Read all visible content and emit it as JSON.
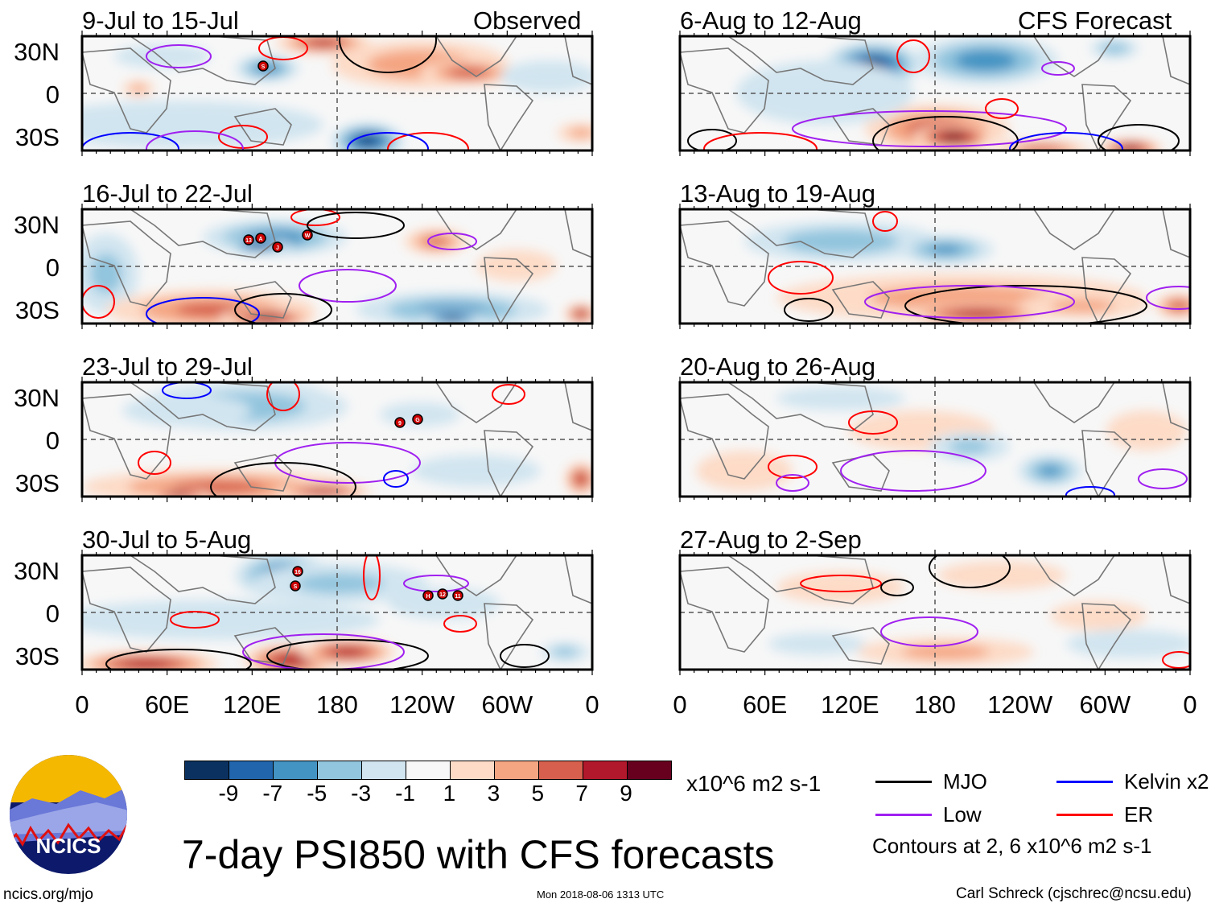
{
  "figure": {
    "title": "7-day PSI850 with CFS forecasts",
    "observed_label": "Observed",
    "forecast_label": "CFS Forecast",
    "units": "x10^6 m2 s-1",
    "timestamp": "Mon 2018-08-06 1313 UTC",
    "website": "ncics.org/mjo",
    "author": "Carl Schreck (cjschrec@ncsu.edu)",
    "logo_text": "NCICS",
    "contour_note": "Contours at 2, 6 x10^6 m2 s-1"
  },
  "axes": {
    "lat_labels": [
      "30N",
      "0",
      "30S"
    ],
    "lon_labels": [
      "0",
      "60E",
      "120E",
      "180",
      "120W",
      "60W",
      "0"
    ]
  },
  "panels": [
    {
      "title": "9-Jul to 15-Jul",
      "type": "observed",
      "storms": [
        "S"
      ]
    },
    {
      "title": "16-Jul to 22-Jul",
      "type": "observed",
      "storms": [
        "13",
        "A",
        "J",
        "W"
      ]
    },
    {
      "title": "23-Jul to 29-Jul",
      "type": "observed",
      "storms": [
        "9",
        "G"
      ]
    },
    {
      "title": "30-Jul to 5-Aug",
      "type": "observed",
      "storms": [
        "16",
        "S",
        "H",
        "12",
        "11"
      ]
    },
    {
      "title": "6-Aug to 12-Aug",
      "type": "forecast",
      "storms": []
    },
    {
      "title": "13-Aug to 19-Aug",
      "type": "forecast",
      "storms": []
    },
    {
      "title": "20-Aug to 26-Aug",
      "type": "forecast",
      "storms": []
    },
    {
      "title": "27-Aug to 2-Sep",
      "type": "forecast",
      "storms": []
    }
  ],
  "colorbar": {
    "labels": [
      "-9",
      "-7",
      "-5",
      "-3",
      "-1",
      "1",
      "3",
      "5",
      "7",
      "9"
    ],
    "colors": [
      "#0b3160",
      "#2166ac",
      "#4393c3",
      "#92c5de",
      "#d1e5f0",
      "#f7f7f7",
      "#fddbc7",
      "#f4a582",
      "#d6604d",
      "#b2182b",
      "#67001f"
    ]
  },
  "legend": [
    {
      "label": "MJO",
      "color": "#000000"
    },
    {
      "label": "Kelvin x2",
      "color": "#0000ff"
    },
    {
      "label": "Low",
      "color": "#a020f0"
    },
    {
      "label": "ER",
      "color": "#ff0000"
    }
  ]
}
